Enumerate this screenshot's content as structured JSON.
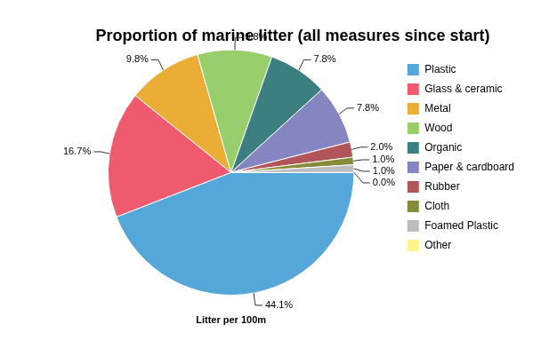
{
  "chart_data": {
    "type": "pie",
    "title": "Proportion of marine litter (all measures since start)",
    "subtitle": "Litter per 100m",
    "categories": [
      "Plastic",
      "Glass & ceramic",
      "Metal",
      "Wood",
      "Organic",
      "Paper & cardboard",
      "Rubber",
      "Cloth",
      "Foamed Plastic",
      "Other"
    ],
    "values": [
      44.1,
      16.7,
      9.8,
      9.8,
      7.8,
      7.8,
      2.0,
      1.0,
      1.0,
      0.0
    ],
    "value_labels": [
      "44.1%",
      "16.7%",
      "9.8%",
      "9.8%",
      "7.8%",
      "7.8%",
      "2.0%",
      "1.0%",
      "1.0%",
      "0.0%"
    ],
    "colors": [
      "#55a6d9",
      "#ef5a6e",
      "#eaad36",
      "#98cf6c",
      "#3b7f80",
      "#8585c1",
      "#b1555b",
      "#868b3a",
      "#bdbdbd",
      "#fff58c"
    ],
    "legend": "right",
    "data_labels": true
  }
}
